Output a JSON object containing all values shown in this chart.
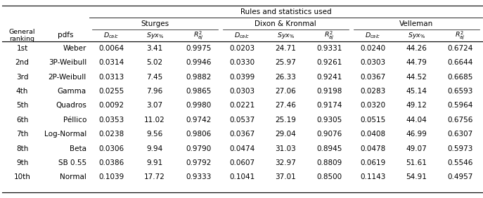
{
  "title": "Rules and statistics used",
  "group_labels": [
    "Sturges",
    "Dixon & Kronmal",
    "Velleman"
  ],
  "row_headers": [
    "1st",
    "2nd",
    "3rd",
    "4th",
    "5th",
    "6th",
    "7th",
    "8th",
    "9th",
    "10th"
  ],
  "pdfs": [
    "Weber",
    "3P-Weibull",
    "2P-Weibull",
    "Gamma",
    "Quadros",
    "Péllico",
    "Log-Normal",
    "Beta",
    "SB 0.55",
    "Normal"
  ],
  "data": [
    [
      0.0064,
      3.41,
      0.9975,
      0.0203,
      24.71,
      0.9331,
      0.024,
      44.26,
      0.6724
    ],
    [
      0.0314,
      5.02,
      0.9946,
      0.033,
      25.97,
      0.9261,
      0.0303,
      44.79,
      0.6644
    ],
    [
      0.0313,
      7.45,
      0.9882,
      0.0399,
      26.33,
      0.9241,
      0.0367,
      44.52,
      0.6685
    ],
    [
      0.0255,
      7.96,
      0.9865,
      0.0303,
      27.06,
      0.9198,
      0.0283,
      45.14,
      0.6593
    ],
    [
      0.0092,
      3.07,
      0.998,
      0.0221,
      27.46,
      0.9174,
      0.032,
      49.12,
      0.5964
    ],
    [
      0.0353,
      11.02,
      0.9742,
      0.0537,
      25.19,
      0.9305,
      0.0515,
      44.04,
      0.6756
    ],
    [
      0.0238,
      9.56,
      0.9806,
      0.0367,
      29.04,
      0.9076,
      0.0408,
      46.99,
      0.6307
    ],
    [
      0.0306,
      9.94,
      0.979,
      0.0474,
      31.03,
      0.8945,
      0.0478,
      49.07,
      0.5973
    ],
    [
      0.0386,
      9.91,
      0.9792,
      0.0607,
      32.97,
      0.8809,
      0.0619,
      51.61,
      0.5546
    ],
    [
      0.1039,
      17.72,
      0.9333,
      0.1041,
      37.01,
      0.85,
      0.1143,
      54.91,
      0.4957
    ]
  ],
  "left_col1_label": "General\nranking",
  "left_col2_label": "pdfs",
  "bg_color": "#ffffff",
  "text_color": "#000000",
  "line_color": "#000000"
}
